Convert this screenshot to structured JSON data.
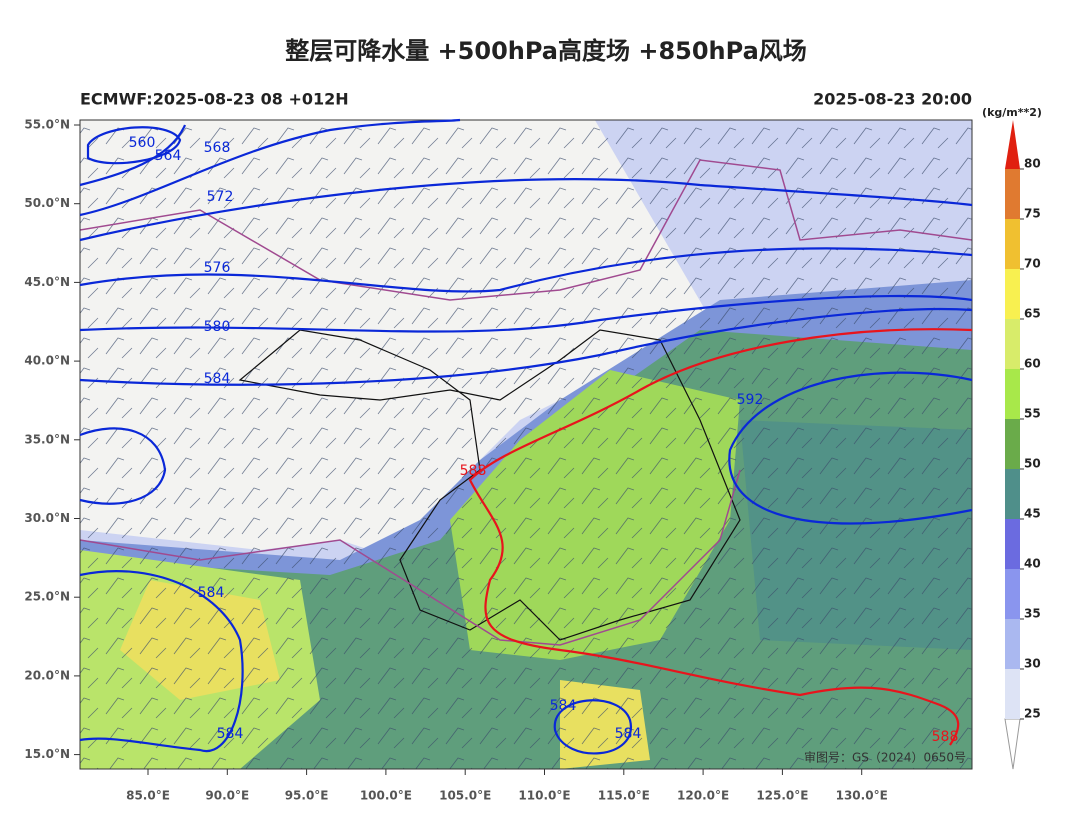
{
  "header": {
    "title": "整层可降水量 +500hPa高度场 +850hPa风场",
    "left": "ECMWF:2025-08-23 08 +012H",
    "right": "2025-08-23 20:00"
  },
  "map": {
    "lon_ticks": [
      {
        "value": 85,
        "label": "85.0°E"
      },
      {
        "value": 90,
        "label": "90.0°E"
      },
      {
        "value": 95,
        "label": "95.0°E"
      },
      {
        "value": 100,
        "label": "100.0°E"
      },
      {
        "value": 105,
        "label": "105.0°E"
      },
      {
        "value": 110,
        "label": "110.0°E"
      },
      {
        "value": 115,
        "label": "115.0°E"
      },
      {
        "value": 120,
        "label": "120.0°E"
      },
      {
        "value": 125,
        "label": "125.0°E"
      },
      {
        "value": 130,
        "label": "130.0°E"
      }
    ],
    "lat_ticks": [
      {
        "value": 55,
        "label": "55.0°N"
      },
      {
        "value": 50,
        "label": "50.0°N"
      },
      {
        "value": 45,
        "label": "45.0°N"
      },
      {
        "value": 40,
        "label": "40.0°N"
      },
      {
        "value": 35,
        "label": "35.0°N"
      },
      {
        "value": 30,
        "label": "30.0°N"
      },
      {
        "value": 25,
        "label": "25.0°N"
      },
      {
        "value": 20,
        "label": "20.0°N"
      },
      {
        "value": 15,
        "label": "15.0°N"
      }
    ],
    "contour_labels": [
      560,
      564,
      568,
      572,
      576,
      580,
      584,
      592,
      588,
      584,
      584,
      584,
      584,
      588
    ],
    "approval": "审图号：GS（2024）0650号"
  },
  "colorbar": {
    "unit": "(kg/m**2)",
    "levels": [
      25,
      30,
      35,
      40,
      45,
      50,
      55,
      60,
      65,
      70,
      75,
      80
    ],
    "colors": [
      "#dde3f5",
      "#aab8f0",
      "#8a95ee",
      "#6b6be0",
      "#4f8f8a",
      "#6aab4a",
      "#a8e84a",
      "#d8ec6a",
      "#f8f050",
      "#f0c030",
      "#e07a30"
    ]
  }
}
